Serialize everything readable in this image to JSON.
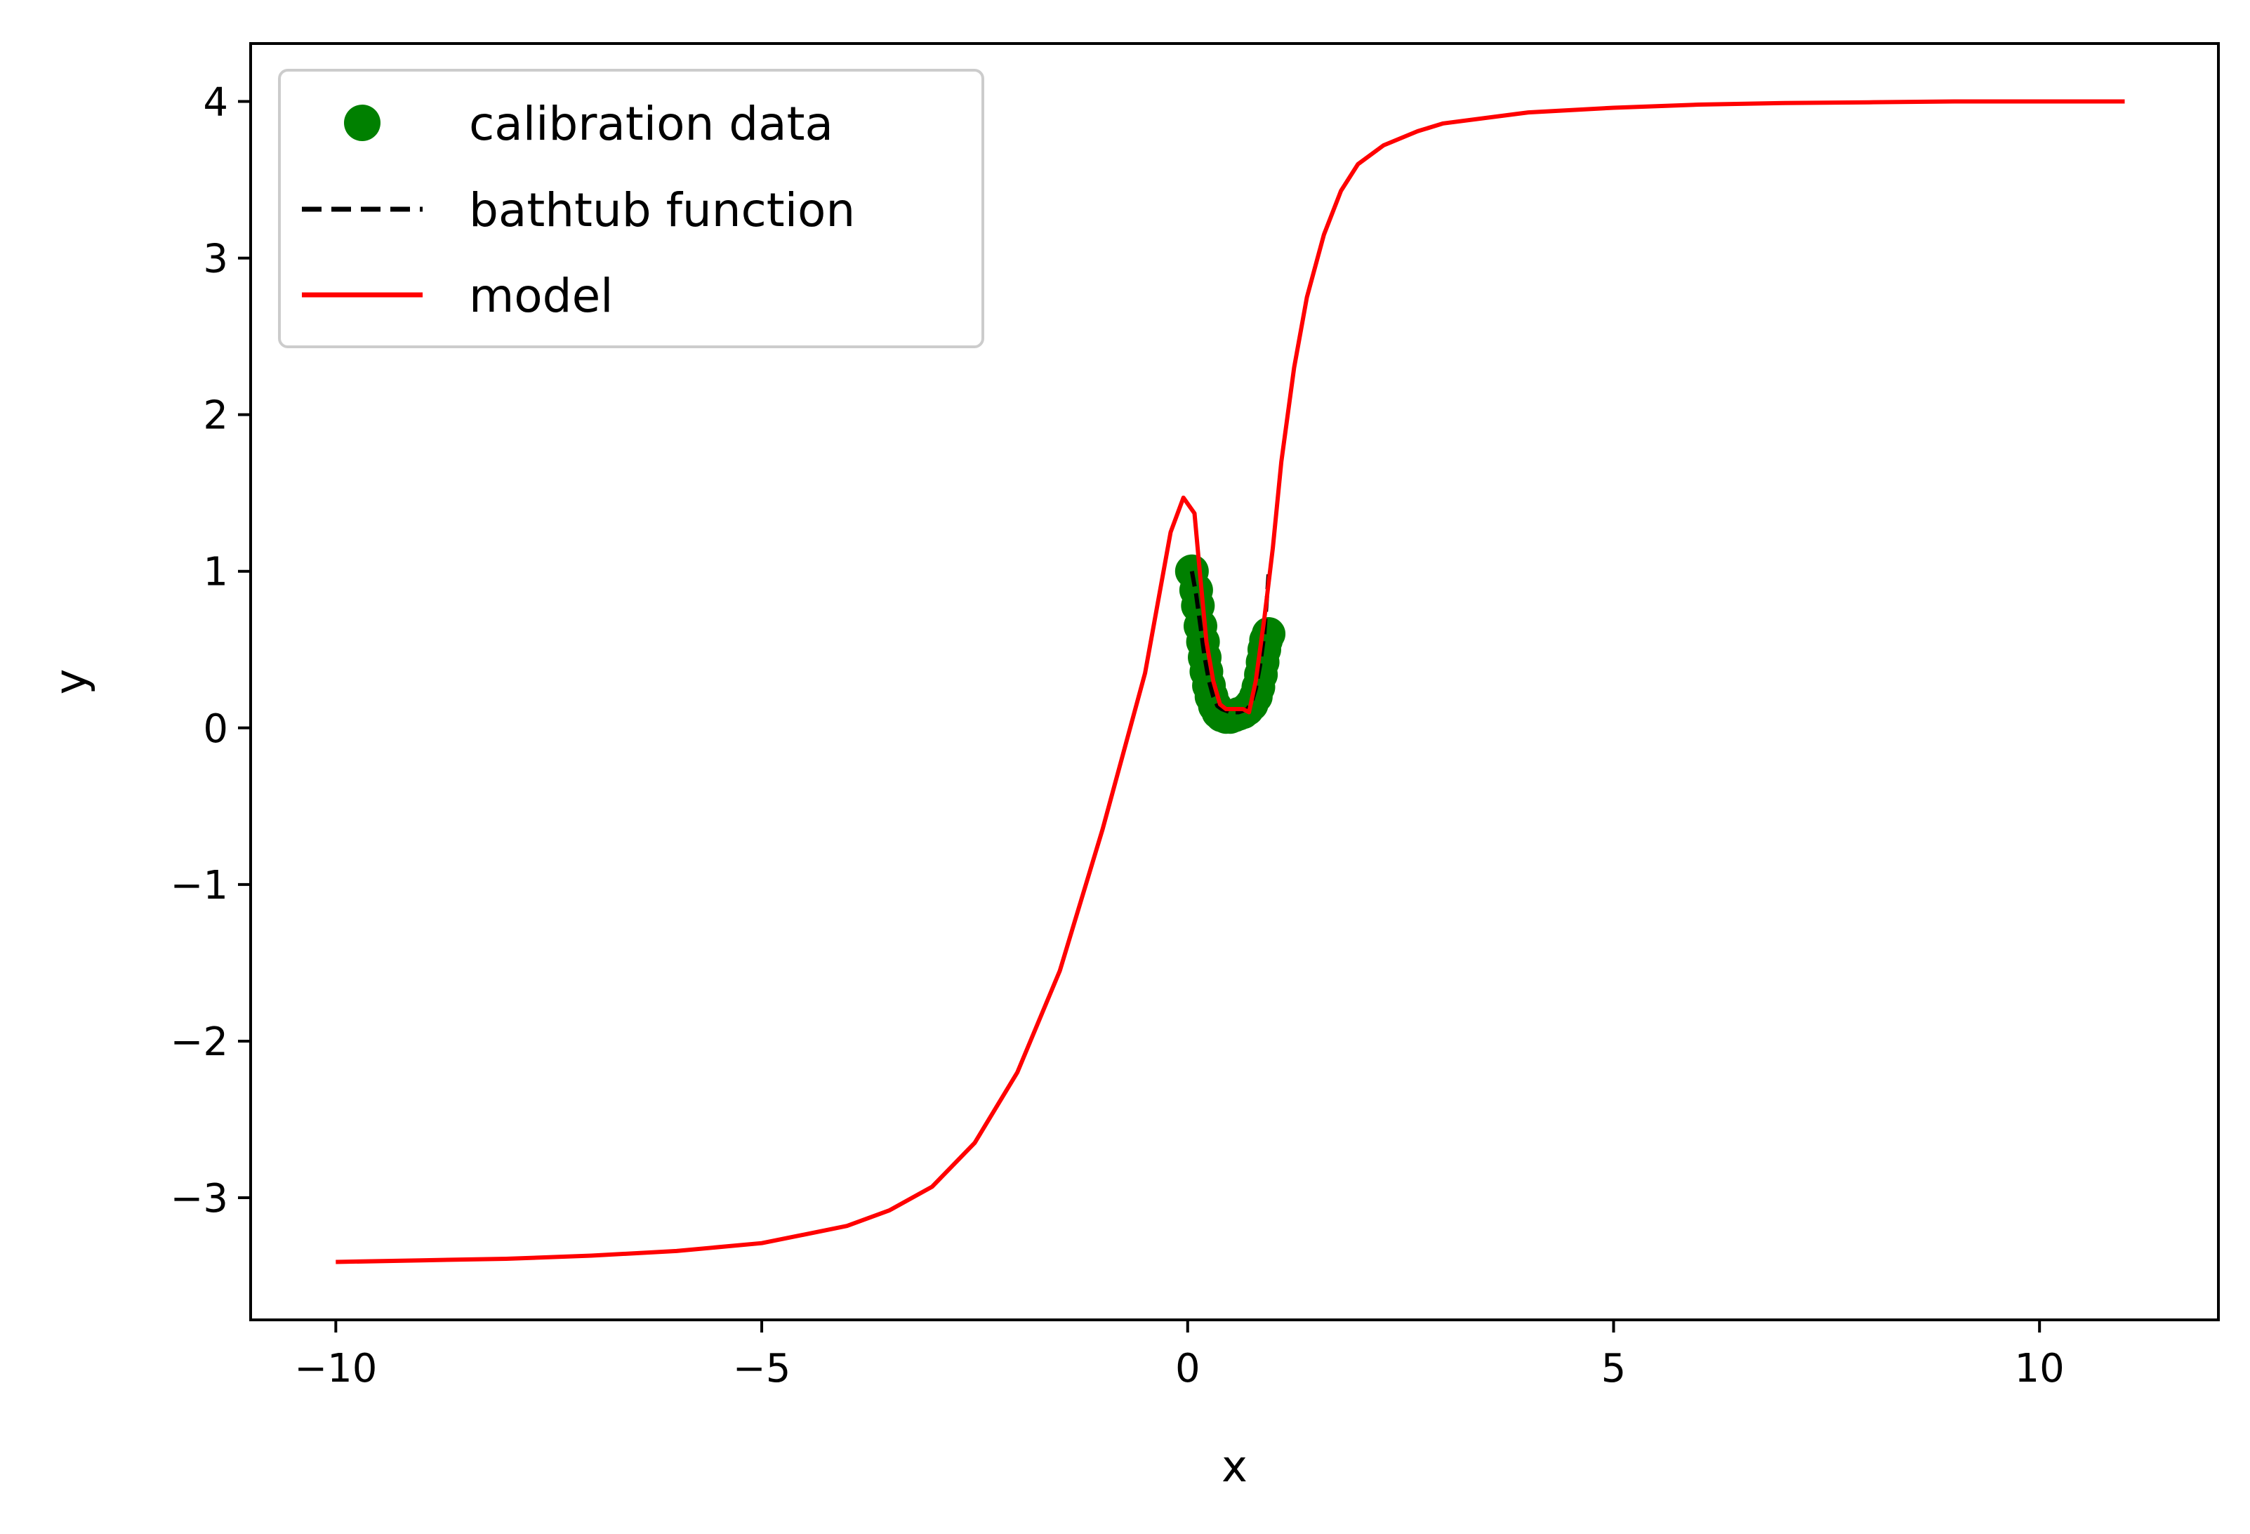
{
  "chart_data": {
    "type": "line",
    "title": "",
    "xlabel": "x",
    "ylabel": "y",
    "xlim": [
      -11.0,
      12.1
    ],
    "ylim": [
      -3.78,
      4.37
    ],
    "x_ticks": [
      -10,
      -5,
      0,
      5,
      10
    ],
    "x_tick_labels": [
      "−10",
      "−5",
      "0",
      "5",
      "10"
    ],
    "y_ticks": [
      -3,
      -2,
      -1,
      0,
      1,
      2,
      3,
      4
    ],
    "y_tick_labels": [
      "−3",
      "−2",
      "−1",
      "0",
      "1",
      "2",
      "3",
      "4"
    ],
    "grid": false,
    "legend_position": "top-left",
    "series": [
      {
        "name": "calibration data",
        "kind": "scatter",
        "color": "#008000",
        "points": [
          [
            0.05,
            1.0
          ],
          [
            0.1,
            0.88
          ],
          [
            0.12,
            0.78
          ],
          [
            0.15,
            0.65
          ],
          [
            0.18,
            0.55
          ],
          [
            0.2,
            0.45
          ],
          [
            0.22,
            0.36
          ],
          [
            0.25,
            0.27
          ],
          [
            0.28,
            0.2
          ],
          [
            0.32,
            0.14
          ],
          [
            0.36,
            0.1
          ],
          [
            0.4,
            0.08
          ],
          [
            0.45,
            0.07
          ],
          [
            0.5,
            0.07
          ],
          [
            0.55,
            0.08
          ],
          [
            0.6,
            0.09
          ],
          [
            0.65,
            0.1
          ],
          [
            0.7,
            0.12
          ],
          [
            0.75,
            0.15
          ],
          [
            0.8,
            0.2
          ],
          [
            0.83,
            0.26
          ],
          [
            0.86,
            0.34
          ],
          [
            0.88,
            0.42
          ],
          [
            0.9,
            0.5
          ],
          [
            0.92,
            0.56
          ],
          [
            0.95,
            0.6
          ]
        ]
      },
      {
        "name": "bathtub function",
        "kind": "line",
        "color": "#000000",
        "dash": "dashed",
        "points": [
          [
            0.05,
            1.0
          ],
          [
            0.1,
            0.85
          ],
          [
            0.15,
            0.65
          ],
          [
            0.2,
            0.45
          ],
          [
            0.25,
            0.3
          ],
          [
            0.3,
            0.2
          ],
          [
            0.35,
            0.14
          ],
          [
            0.4,
            0.12
          ],
          [
            0.5,
            0.1
          ],
          [
            0.6,
            0.1
          ],
          [
            0.7,
            0.12
          ],
          [
            0.75,
            0.16
          ],
          [
            0.8,
            0.25
          ],
          [
            0.85,
            0.4
          ],
          [
            0.9,
            0.6
          ],
          [
            0.95,
            0.98
          ]
        ]
      },
      {
        "name": "model",
        "kind": "line",
        "color": "#ff0000",
        "dash": "solid",
        "points": [
          [
            -10,
            -3.41
          ],
          [
            -9,
            -3.4
          ],
          [
            -8,
            -3.39
          ],
          [
            -7,
            -3.37
          ],
          [
            -6,
            -3.34
          ],
          [
            -5,
            -3.29
          ],
          [
            -4,
            -3.18
          ],
          [
            -3.5,
            -3.08
          ],
          [
            -3,
            -2.93
          ],
          [
            -2.5,
            -2.65
          ],
          [
            -2,
            -2.2
          ],
          [
            -1.5,
            -1.55
          ],
          [
            -1,
            -0.65
          ],
          [
            -0.5,
            0.35
          ],
          [
            -0.2,
            1.25
          ],
          [
            -0.05,
            1.47
          ],
          [
            0.08,
            1.37
          ],
          [
            0.15,
            0.95
          ],
          [
            0.22,
            0.55
          ],
          [
            0.3,
            0.3
          ],
          [
            0.38,
            0.15
          ],
          [
            0.45,
            0.12
          ],
          [
            0.55,
            0.12
          ],
          [
            0.65,
            0.12
          ],
          [
            0.72,
            0.1
          ],
          [
            0.8,
            0.3
          ],
          [
            0.9,
            0.7
          ],
          [
            1.0,
            1.15
          ],
          [
            1.1,
            1.7
          ],
          [
            1.25,
            2.3
          ],
          [
            1.4,
            2.75
          ],
          [
            1.6,
            3.15
          ],
          [
            1.8,
            3.43
          ],
          [
            2.0,
            3.6
          ],
          [
            2.3,
            3.72
          ],
          [
            2.7,
            3.81
          ],
          [
            3,
            3.86
          ],
          [
            4,
            3.93
          ],
          [
            5,
            3.96
          ],
          [
            6,
            3.98
          ],
          [
            7,
            3.99
          ],
          [
            8,
            3.995
          ],
          [
            9,
            4.0
          ],
          [
            10,
            4.0
          ],
          [
            11,
            4.0
          ]
        ]
      }
    ]
  }
}
